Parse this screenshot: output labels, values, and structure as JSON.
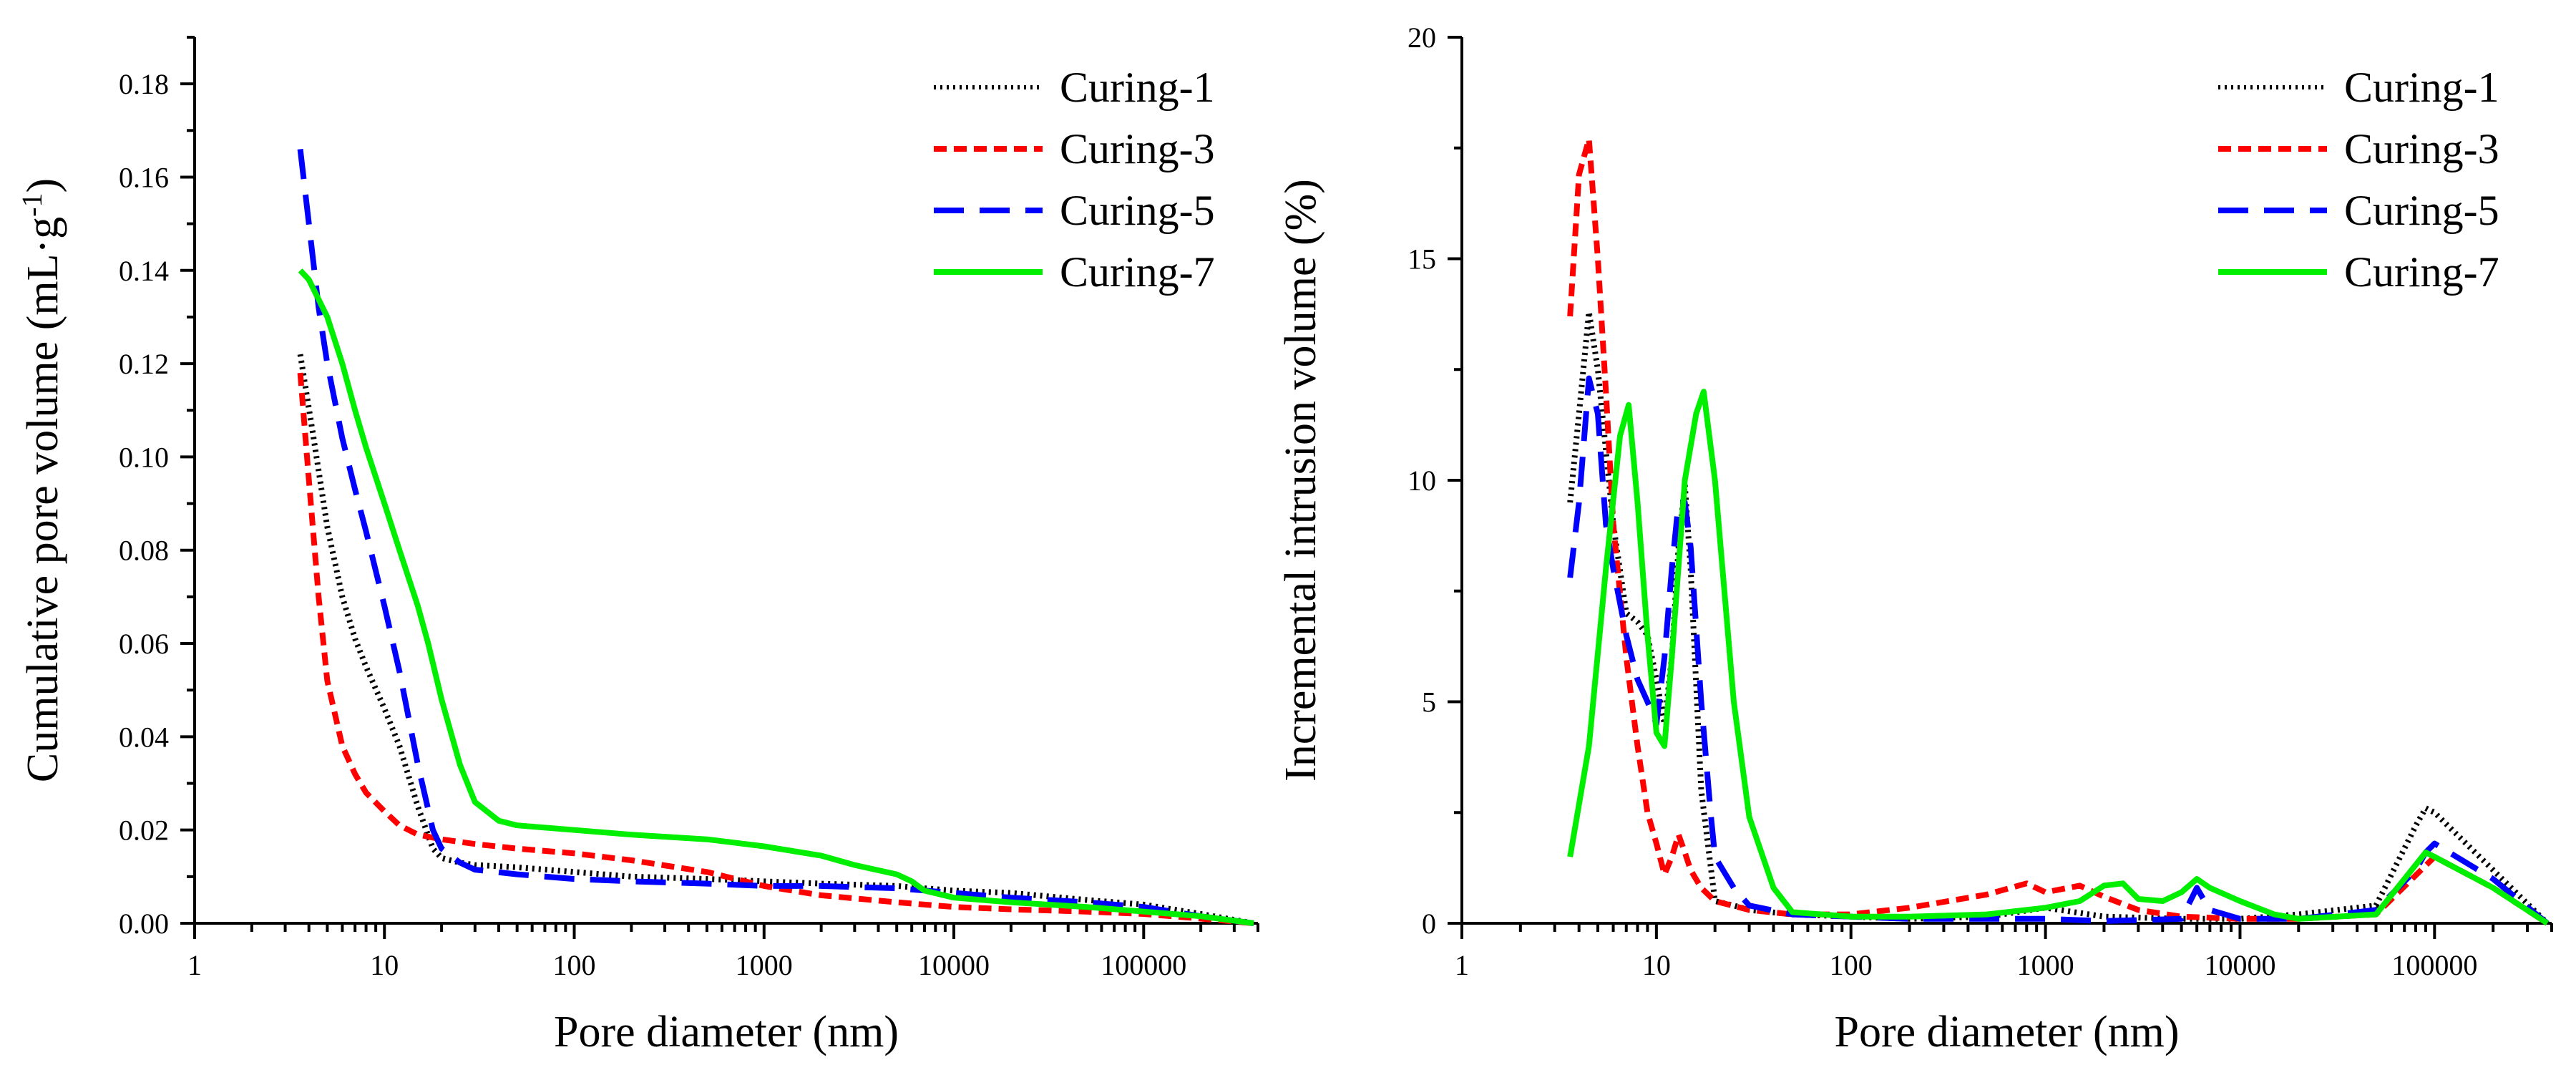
{
  "chart_data": [
    {
      "type": "line",
      "xscale": "log",
      "xlabel": "Pore diameter (nm)",
      "ylabel_parts": [
        "Cumulative pore volume (mL·g",
        "-1",
        ")"
      ],
      "xlim": [
        1,
        400000
      ],
      "ylim": [
        0,
        0.19
      ],
      "xticks": [
        1,
        10,
        100,
        1000,
        10000,
        100000
      ],
      "xtick_labels": [
        "1",
        "10",
        "100",
        "1000",
        "10000",
        "100000"
      ],
      "yticks": [
        0,
        0.02,
        0.04,
        0.06,
        0.08,
        0.1,
        0.12,
        0.14,
        0.16,
        0.18
      ],
      "ytick_labels": [
        "0.00",
        "0.02",
        "0.04",
        "0.06",
        "0.08",
        "0.10",
        "0.12",
        "0.14",
        "0.16",
        "0.18"
      ],
      "legend_position": "top-right",
      "series": [
        {
          "name": "Curing-1",
          "color": "#000000",
          "dash": "dotted",
          "x": [
            3.6,
            4.2,
            5,
            6,
            7,
            8,
            10,
            12,
            15,
            18,
            20,
            25,
            30,
            50,
            100,
            200,
            500,
            1000,
            2000,
            5000,
            10000,
            20000,
            50000,
            100000,
            200000,
            380000
          ],
          "y": [
            0.122,
            0.105,
            0.085,
            0.07,
            0.061,
            0.055,
            0.046,
            0.038,
            0.025,
            0.016,
            0.014,
            0.013,
            0.0125,
            0.012,
            0.011,
            0.01,
            0.0095,
            0.009,
            0.0085,
            0.008,
            0.007,
            0.0065,
            0.005,
            0.004,
            0.002,
            0.0
          ]
        },
        {
          "name": "Curing-3",
          "color": "#ff0000",
          "dash": "short-dash",
          "x": [
            3.6,
            4,
            4.5,
            5,
            6,
            7,
            8,
            10,
            12,
            15,
            20,
            30,
            50,
            100,
            200,
            500,
            1000,
            2000,
            5000,
            10000,
            20000,
            50000,
            100000,
            200000,
            380000
          ],
          "y": [
            0.118,
            0.095,
            0.07,
            0.052,
            0.038,
            0.032,
            0.028,
            0.024,
            0.021,
            0.019,
            0.018,
            0.017,
            0.016,
            0.015,
            0.0135,
            0.011,
            0.008,
            0.006,
            0.0045,
            0.0035,
            0.003,
            0.0025,
            0.002,
            0.001,
            0.0
          ]
        },
        {
          "name": "Curing-5",
          "color": "#0000ff",
          "dash": "long-dash",
          "x": [
            3.6,
            4,
            4.5,
            5,
            6,
            7,
            8,
            10,
            12,
            15,
            18,
            20,
            25,
            30,
            50,
            100,
            200,
            500,
            1000,
            2000,
            5000,
            10000,
            20000,
            50000,
            100000,
            200000,
            380000
          ],
          "y": [
            0.166,
            0.15,
            0.132,
            0.12,
            0.104,
            0.093,
            0.084,
            0.068,
            0.054,
            0.034,
            0.02,
            0.016,
            0.013,
            0.0115,
            0.0105,
            0.0095,
            0.009,
            0.0085,
            0.008,
            0.008,
            0.0075,
            0.0065,
            0.0055,
            0.0045,
            0.0035,
            0.0015,
            0.0
          ]
        },
        {
          "name": "Curing-7",
          "color": "#00ee00",
          "dash": "solid",
          "x": [
            3.6,
            4,
            5,
            6,
            7,
            8,
            10,
            12,
            15,
            17,
            20,
            25,
            30,
            40,
            50,
            100,
            200,
            500,
            1000,
            2000,
            3000,
            5000,
            6000,
            7000,
            10000,
            20000,
            50000,
            100000,
            200000,
            380000
          ],
          "y": [
            0.14,
            0.138,
            0.13,
            0.12,
            0.11,
            0.102,
            0.09,
            0.08,
            0.068,
            0.06,
            0.048,
            0.034,
            0.026,
            0.022,
            0.021,
            0.02,
            0.019,
            0.018,
            0.0165,
            0.0145,
            0.0125,
            0.0105,
            0.009,
            0.007,
            0.0055,
            0.0045,
            0.0035,
            0.0025,
            0.0015,
            0.0
          ]
        }
      ]
    },
    {
      "type": "line",
      "xscale": "log",
      "xlabel": "Pore diameter (nm)",
      "ylabel_parts": [
        "Incremental intrusion volume (%)"
      ],
      "xlim": [
        1,
        400000
      ],
      "ylim": [
        0,
        20
      ],
      "xticks": [
        1,
        10,
        100,
        1000,
        10000,
        100000
      ],
      "xtick_labels": [
        "1",
        "10",
        "100",
        "1000",
        "10000",
        "100000"
      ],
      "yticks": [
        0,
        5,
        10,
        15,
        20
      ],
      "ytick_labels": [
        "0",
        "5",
        "10",
        "15",
        "20"
      ],
      "legend_position": "top-right",
      "series": [
        {
          "name": "Curing-1",
          "color": "#000000",
          "dash": "dotted",
          "x": [
            3.6,
            4,
            4.5,
            5,
            6,
            7,
            8,
            9,
            10,
            11,
            12,
            13,
            14,
            15,
            17,
            20,
            25,
            30,
            50,
            100,
            200,
            500,
            1000,
            2000,
            5000,
            10000,
            20000,
            50000,
            80000,
            90000,
            100000,
            200000,
            380000
          ],
          "y": [
            9.5,
            11.5,
            13.8,
            12.5,
            9,
            7,
            6.8,
            6.5,
            5.5,
            4.5,
            6,
            8.5,
            9.9,
            8,
            3,
            0.5,
            0.4,
            0.3,
            0.2,
            0.15,
            0.1,
            0.15,
            0.35,
            0.15,
            0.1,
            0.1,
            0.2,
            0.4,
            2.2,
            2.6,
            2.5,
            1.2,
            0.0
          ]
        },
        {
          "name": "Curing-3",
          "color": "#ff0000",
          "dash": "short-dash",
          "x": [
            3.6,
            4,
            4.5,
            5,
            5.5,
            6,
            7,
            8,
            9,
            10,
            11,
            12,
            13,
            14,
            15,
            17,
            20,
            30,
            50,
            100,
            200,
            500,
            800,
            1000,
            1500,
            2000,
            3000,
            5000,
            10000,
            20000,
            50000,
            100000,
            200000,
            380000
          ],
          "y": [
            13.7,
            16.9,
            17.7,
            15,
            12,
            9,
            6,
            4,
            2.5,
            1.8,
            1.1,
            1.5,
            2.0,
            1.6,
            1.2,
            0.8,
            0.5,
            0.3,
            0.2,
            0.2,
            0.35,
            0.65,
            0.9,
            0.7,
            0.85,
            0.6,
            0.3,
            0.15,
            0.1,
            0.1,
            0.2,
            1.5,
            0.8,
            0.0
          ]
        },
        {
          "name": "Curing-5",
          "color": "#0000ff",
          "dash": "long-dash",
          "x": [
            3.6,
            4,
            4.5,
            5,
            5.5,
            6,
            7,
            8,
            9,
            10,
            11,
            12,
            13,
            14,
            15,
            17,
            19,
            20,
            25,
            30,
            50,
            100,
            200,
            500,
            1000,
            2000,
            5000,
            6000,
            7000,
            10000,
            20000,
            50000,
            80000,
            90000,
            100000,
            200000,
            380000
          ],
          "y": [
            7.8,
            9.5,
            12.3,
            11.5,
            9,
            8,
            6.5,
            5.5,
            5,
            4.5,
            6,
            8,
            9.5,
            9.5,
            8.5,
            5,
            2.5,
            1.5,
            0.8,
            0.4,
            0.2,
            0.15,
            0.1,
            0.1,
            0.1,
            0.05,
            0.1,
            0.8,
            0.3,
            0.1,
            0.1,
            0.3,
            1.2,
            1.6,
            1.8,
            1.0,
            0.0
          ]
        },
        {
          "name": "Curing-7",
          "color": "#00ee00",
          "dash": "solid",
          "x": [
            3.6,
            4.5,
            5.5,
            6.5,
            7.2,
            8,
            9,
            10,
            11,
            12,
            14,
            16,
            17.5,
            20,
            25,
            30,
            40,
            50,
            100,
            200,
            500,
            1000,
            1500,
            2000,
            2500,
            3000,
            4000,
            5000,
            6000,
            7000,
            10000,
            15000,
            20000,
            50000,
            70000,
            90000,
            100000,
            200000,
            380000
          ],
          "y": [
            1.5,
            4,
            8,
            11,
            11.7,
            9.5,
            6.5,
            4.3,
            4,
            6,
            10,
            11.5,
            12,
            10,
            5,
            2.4,
            0.8,
            0.25,
            0.15,
            0.15,
            0.2,
            0.35,
            0.5,
            0.85,
            0.9,
            0.55,
            0.5,
            0.7,
            1.0,
            0.8,
            0.5,
            0.2,
            0.1,
            0.2,
            1.0,
            1.6,
            1.5,
            0.8,
            0.0
          ]
        }
      ]
    }
  ]
}
